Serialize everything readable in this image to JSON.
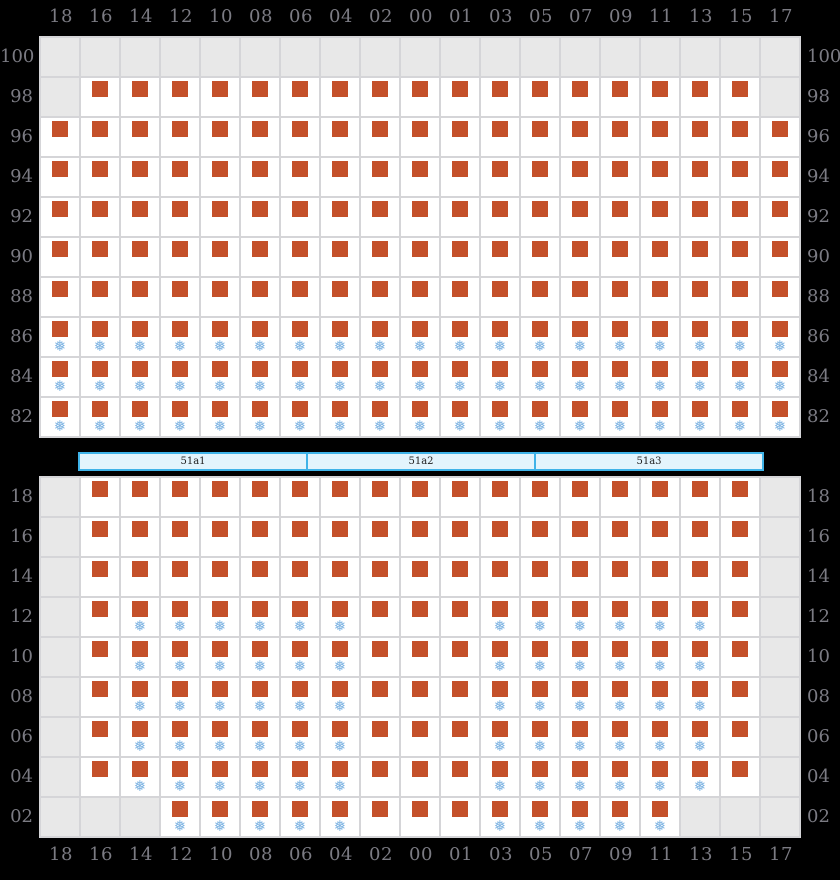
{
  "palette": {
    "background": "#000000",
    "cell_fill": "#ffffff",
    "cell_empty": "#e8e8e8",
    "grid_line": "#d5d5d8",
    "seat_color": "#c4502a",
    "snow_color": "#7db3e2",
    "label_color": "#7b7b83",
    "bar_border": "#3fb3e8",
    "bar_fill": "#e3f4fc"
  },
  "icons": {
    "seat": "seat-occupied-square-icon",
    "snow": "snowflake-icon",
    "snowflake_glyph": "❅"
  },
  "cell_codes": {
    "E": "no-seat",
    "S": "occupied-seat",
    "W": "occupied-seat-with-snowflake"
  },
  "columns": [
    "18",
    "16",
    "14",
    "12",
    "10",
    "08",
    "06",
    "04",
    "02",
    "00",
    "01",
    "03",
    "05",
    "07",
    "09",
    "11",
    "13",
    "15",
    "17"
  ],
  "upper_deck": {
    "rows": [
      {
        "label": "100",
        "cells": "EEEEEEEEEEEEEEEEEEE"
      },
      {
        "label": "98",
        "cells": "ESSSSSSSSSSSSSSSSSE"
      },
      {
        "label": "96",
        "cells": "SSSSSSSSSSSSSSSSSSS"
      },
      {
        "label": "94",
        "cells": "SSSSSSSSSSSSSSSSSSS"
      },
      {
        "label": "92",
        "cells": "SSSSSSSSSSSSSSSSSSS"
      },
      {
        "label": "90",
        "cells": "SSSSSSSSSSSSSSSSSSS"
      },
      {
        "label": "88",
        "cells": "SSSSSSSSSSSSSSSSSSS"
      },
      {
        "label": "86",
        "cells": "WWWWWWWWWWWWWWWWWWW"
      },
      {
        "label": "84",
        "cells": "WWWWWWWWWWWWWWWWWWW"
      },
      {
        "label": "82",
        "cells": "WWWWWWWWWWWWWWWWWWW"
      }
    ]
  },
  "divider": {
    "sections": [
      {
        "label": "51a1"
      },
      {
        "label": "51a2"
      },
      {
        "label": "51a3"
      }
    ]
  },
  "lower_deck": {
    "rows": [
      {
        "label": "18",
        "cells": "ESSSSSSSSSSSSSSSSSE"
      },
      {
        "label": "16",
        "cells": "ESSSSSSSSSSSSSSSSSE"
      },
      {
        "label": "14",
        "cells": "ESSSSSSSSSSSSSSSSSE"
      },
      {
        "label": "12",
        "cells": "ESWWWWWWSSSWWWWWWSE"
      },
      {
        "label": "10",
        "cells": "ESWWWWWWSSSWWWWWWSE"
      },
      {
        "label": "08",
        "cells": "ESWWWWWWSSSWWWWWWSE"
      },
      {
        "label": "06",
        "cells": "ESWWWWWWSSSWWWWWWSE"
      },
      {
        "label": "04",
        "cells": "ESWWWWWWSSSWWWWWWSE"
      },
      {
        "label": "02",
        "cells": "EEEWWWWWSSSWWWWWEEE"
      }
    ]
  }
}
